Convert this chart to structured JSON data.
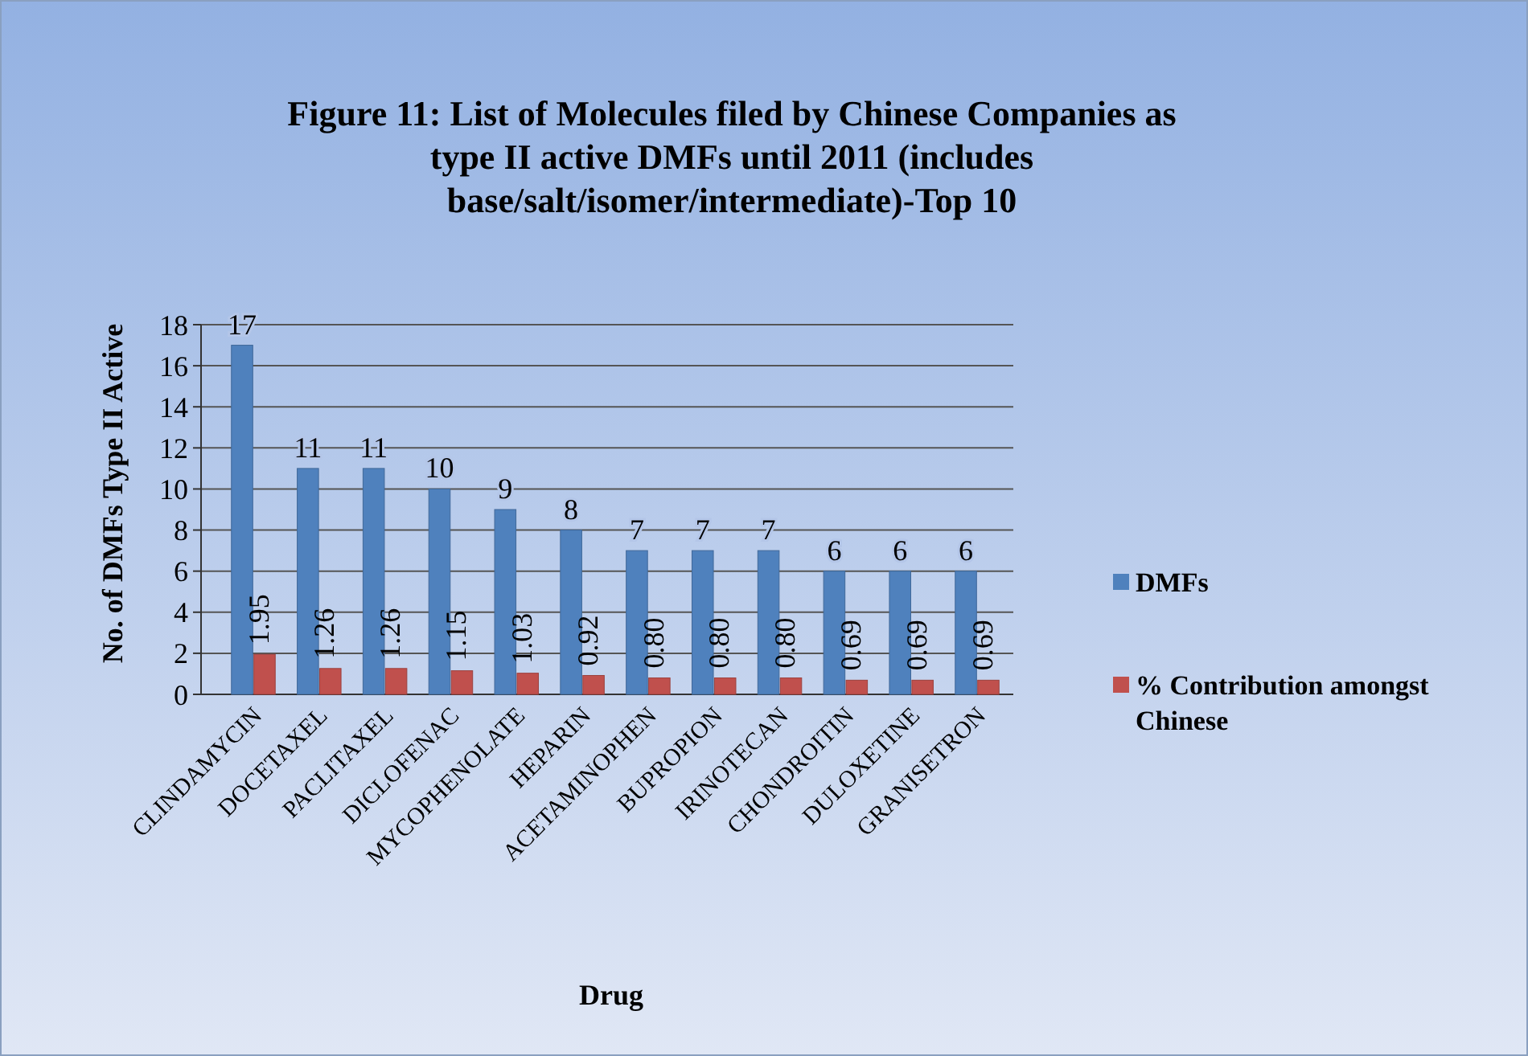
{
  "chart_data": {
    "type": "bar",
    "title": "Figure 11: List of Molecules filed by Chinese Companies as type II active DMFs until 2011 (includes base/salt/isomer/intermediate)-Top 10",
    "xlabel": "Drug",
    "ylabel": "No. of DMFs Type II Active",
    "categories": [
      "CLINDAMYCIN",
      "DOCETAXEL",
      "PACLITAXEL",
      "DICLOFENAC",
      "MYCOPHENOLATE",
      "HEPARIN",
      "ACETAMINOPHEN",
      "BUPROPION",
      "IRINOTECAN",
      "CHONDROITIN",
      "DULOXETINE",
      "GRANISETRON"
    ],
    "series": [
      {
        "name": "DMFs",
        "color": "#4f81bd",
        "values": [
          17,
          11,
          11,
          10,
          9,
          8,
          7,
          7,
          7,
          6,
          6,
          6
        ]
      },
      {
        "name": "% Contribution amongst Chinese",
        "color": "#c0504d",
        "values": [
          1.95,
          1.26,
          1.26,
          1.15,
          1.03,
          0.92,
          0.8,
          0.8,
          0.8,
          0.69,
          0.69,
          0.69
        ],
        "value_labels": [
          "1.95",
          "1.26",
          "1.26",
          "1.15",
          "1.03",
          "0.92",
          "0.80",
          "0.80",
          "0.80",
          "0.69",
          "0.69",
          "0.69"
        ]
      }
    ],
    "data_labels": true,
    "ylim": [
      0,
      18
    ],
    "yticks": [
      0,
      2,
      4,
      6,
      8,
      10,
      12,
      14,
      16,
      18
    ],
    "grid": "y",
    "legend": "right"
  }
}
